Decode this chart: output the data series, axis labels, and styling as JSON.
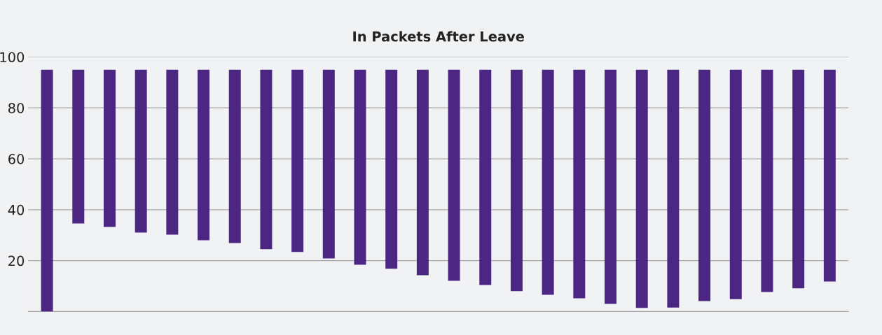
{
  "chart_data": {
    "type": "bar",
    "title": "In Packets After Leave",
    "categories": [
      null,
      null,
      null,
      null,
      null,
      null,
      null,
      null,
      null,
      null,
      null,
      null,
      null,
      null,
      null,
      null,
      null,
      null,
      null,
      null,
      null,
      null,
      null,
      null,
      null,
      null
    ],
    "base": [
      0,
      34.6,
      33.2,
      31,
      30.2,
      28,
      26.9,
      24.5,
      23.4,
      20.9,
      18.4,
      16.8,
      14.3,
      12.1,
      10.4,
      8,
      6.6,
      5.2,
      3,
      1.4,
      1.6,
      4.1,
      4.9,
      7.7,
      9.1,
      11.8
    ],
    "values": [
      95,
      60.4,
      61.8,
      64,
      64.8,
      67,
      68.1,
      70.5,
      71.6,
      74.1,
      76.6,
      78.2,
      80.7,
      82.9,
      84.6,
      87,
      88.4,
      89.8,
      92,
      93.6,
      93.4,
      90.9,
      90.1,
      87.3,
      85.9,
      83.2
    ],
    "color": "#4b2683",
    "ylim": [
      0,
      100
    ],
    "yticks": [
      {
        "value": 0,
        "label": null
      },
      20,
      40,
      60,
      80,
      100
    ],
    "grid": "y",
    "tick_labels": "y"
  }
}
